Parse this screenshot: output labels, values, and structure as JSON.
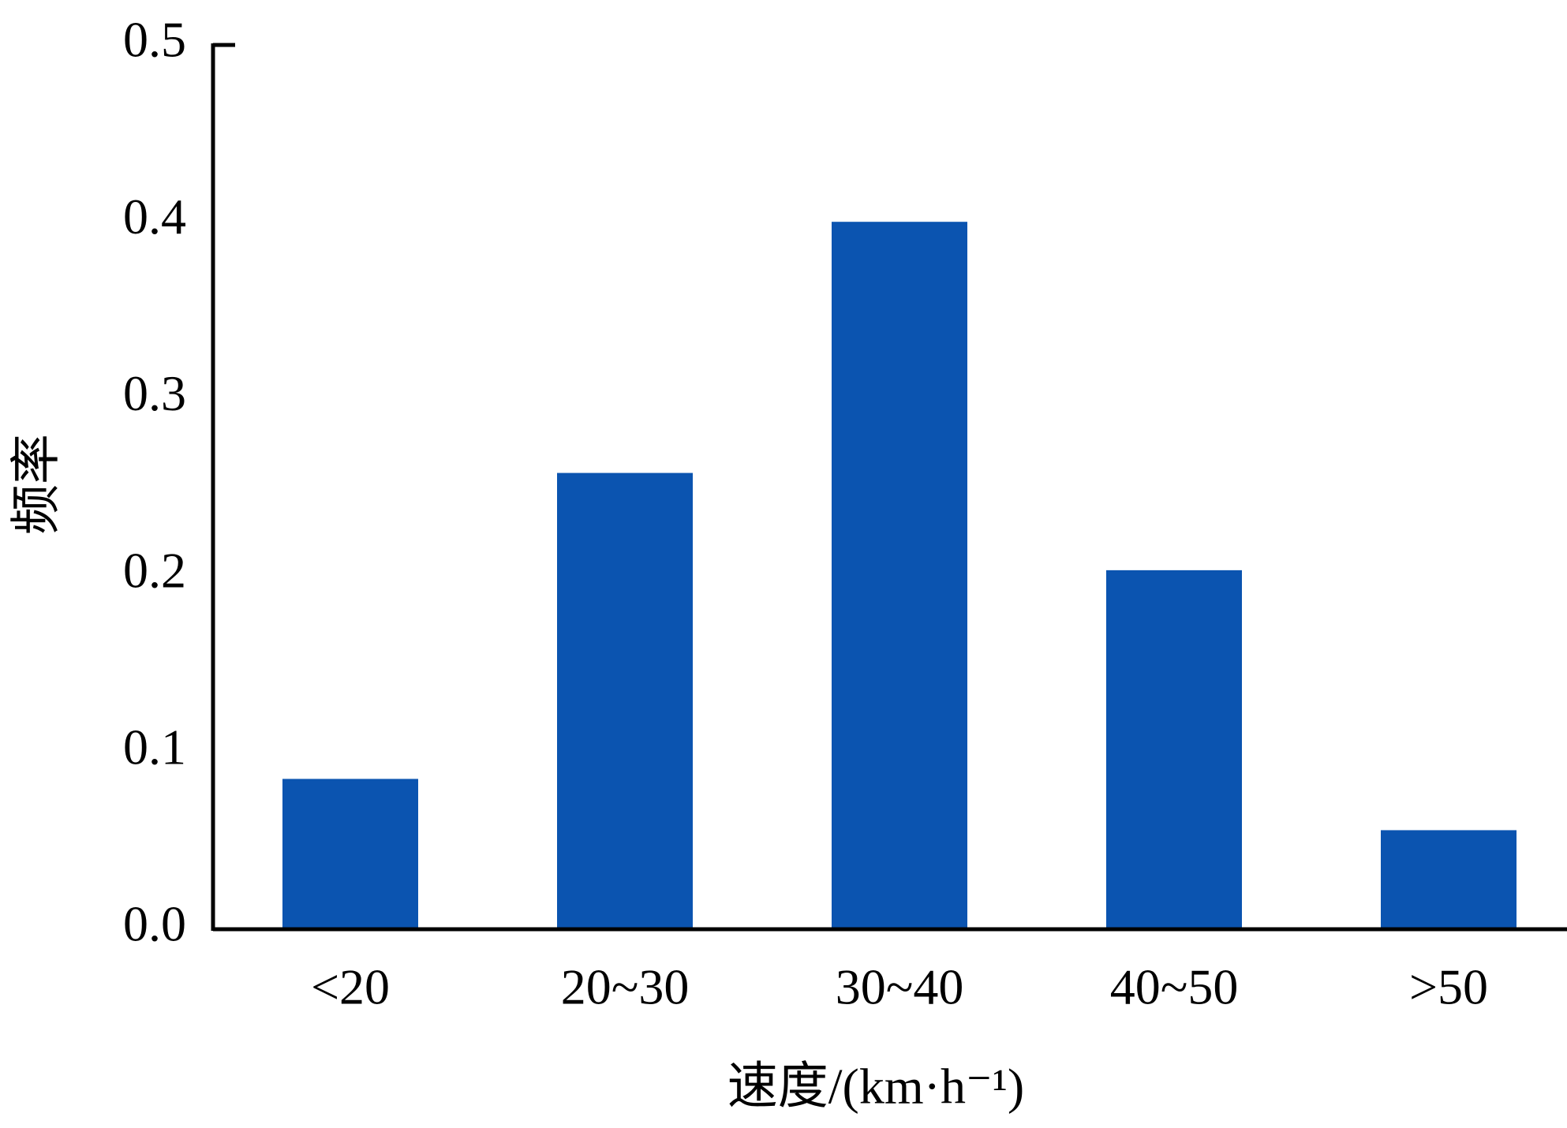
{
  "chart_data": {
    "type": "bar",
    "y_label": "频率",
    "x_label": "速度/(km·h⁻¹)",
    "categories": [
      "<20",
      "20~30",
      "30~40",
      "40~50",
      ">50"
    ],
    "values": [
      0.085,
      0.258,
      0.4,
      0.203,
      0.056
    ],
    "color": "#0b54b0",
    "ylim": [
      0,
      0.5
    ],
    "yticks": [
      {
        "value": 0,
        "label": "0.0"
      },
      0.1,
      0.2,
      0.3,
      0.4,
      0.5
    ],
    "grid": false
  }
}
